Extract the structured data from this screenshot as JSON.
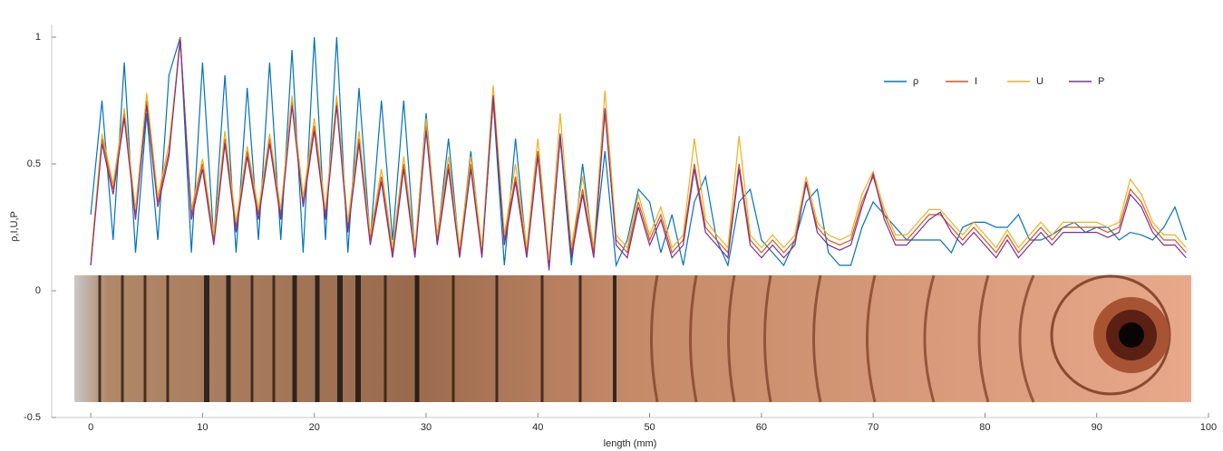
{
  "chart_data": {
    "type": "line",
    "x_label": "length (mm)",
    "y_label": "ρ,I,U,P",
    "xlim": [
      -3.5,
      100
    ],
    "ylim": [
      -0.5,
      1.05
    ],
    "xticks": [
      0,
      10,
      20,
      30,
      40,
      50,
      60,
      70,
      80,
      90,
      100
    ],
    "yticks": [
      -0.5,
      0,
      0.5,
      1
    ],
    "legend_loc": "upper right",
    "x": [
      0,
      1,
      2,
      3,
      4,
      5,
      6,
      7,
      8,
      9,
      10,
      11,
      12,
      13,
      14,
      15,
      16,
      17,
      18,
      19,
      20,
      21,
      22,
      23,
      24,
      25,
      26,
      27,
      28,
      29,
      30,
      31,
      32,
      33,
      34,
      35,
      36,
      37,
      38,
      39,
      40,
      41,
      42,
      43,
      44,
      45,
      46,
      47,
      48,
      49,
      50,
      51,
      52,
      53,
      54,
      55,
      56,
      57,
      58,
      59,
      60,
      61,
      62,
      63,
      64,
      65,
      66,
      67,
      68,
      69,
      70,
      71,
      72,
      73,
      74,
      75,
      76,
      77,
      78,
      79,
      80,
      81,
      82,
      83,
      84,
      85,
      86,
      87,
      88,
      89,
      90,
      91,
      92,
      93,
      94,
      95,
      96,
      97,
      98
    ],
    "series": [
      {
        "name": "ρ",
        "color": "#0072bd",
        "values": [
          0.3,
          0.75,
          0.2,
          0.9,
          0.15,
          0.7,
          0.2,
          0.85,
          1.0,
          0.15,
          0.9,
          0.2,
          0.85,
          0.15,
          0.8,
          0.2,
          0.9,
          0.2,
          0.95,
          0.15,
          1.0,
          0.2,
          1.0,
          0.15,
          0.8,
          0.2,
          0.75,
          0.2,
          0.75,
          0.15,
          0.7,
          0.2,
          0.6,
          0.15,
          0.55,
          0.15,
          0.75,
          0.1,
          0.6,
          0.15,
          0.55,
          0.1,
          0.6,
          0.1,
          0.5,
          0.15,
          0.55,
          0.1,
          0.2,
          0.4,
          0.35,
          0.15,
          0.3,
          0.1,
          0.35,
          0.45,
          0.2,
          0.1,
          0.35,
          0.4,
          0.2,
          0.15,
          0.1,
          0.2,
          0.35,
          0.4,
          0.15,
          0.1,
          0.1,
          0.25,
          0.35,
          0.3,
          0.25,
          0.2,
          0.2,
          0.2,
          0.2,
          0.15,
          0.25,
          0.27,
          0.27,
          0.25,
          0.25,
          0.3,
          0.2,
          0.2,
          0.22,
          0.25,
          0.27,
          0.23,
          0.25,
          0.25,
          0.2,
          0.23,
          0.22,
          0.2,
          0.25,
          0.33,
          0.2
        ]
      },
      {
        "name": "I",
        "color": "#d95319",
        "values": [
          0.1,
          0.6,
          0.4,
          0.7,
          0.3,
          0.75,
          0.35,
          0.55,
          1.0,
          0.3,
          0.5,
          0.2,
          0.6,
          0.25,
          0.55,
          0.3,
          0.6,
          0.3,
          0.75,
          0.35,
          0.65,
          0.3,
          0.75,
          0.25,
          0.6,
          0.2,
          0.45,
          0.15,
          0.5,
          0.15,
          0.65,
          0.2,
          0.5,
          0.15,
          0.5,
          0.15,
          0.75,
          0.2,
          0.45,
          0.15,
          0.55,
          0.1,
          0.6,
          0.15,
          0.4,
          0.15,
          0.7,
          0.2,
          0.15,
          0.35,
          0.2,
          0.3,
          0.15,
          0.2,
          0.5,
          0.25,
          0.2,
          0.15,
          0.5,
          0.2,
          0.15,
          0.2,
          0.15,
          0.2,
          0.42,
          0.25,
          0.2,
          0.18,
          0.2,
          0.35,
          0.45,
          0.3,
          0.2,
          0.2,
          0.25,
          0.3,
          0.3,
          0.25,
          0.2,
          0.25,
          0.2,
          0.15,
          0.22,
          0.15,
          0.2,
          0.25,
          0.2,
          0.25,
          0.25,
          0.25,
          0.25,
          0.23,
          0.25,
          0.4,
          0.35,
          0.25,
          0.2,
          0.2,
          0.15
        ]
      },
      {
        "name": "U",
        "color": "#edb120",
        "values": [
          0.12,
          0.62,
          0.42,
          0.72,
          0.32,
          0.78,
          0.37,
          0.58,
          0.98,
          0.32,
          0.52,
          0.22,
          0.63,
          0.27,
          0.57,
          0.32,
          0.62,
          0.32,
          0.77,
          0.37,
          0.68,
          0.32,
          0.77,
          0.27,
          0.63,
          0.22,
          0.48,
          0.17,
          0.53,
          0.17,
          0.68,
          0.22,
          0.53,
          0.17,
          0.53,
          0.17,
          0.81,
          0.22,
          0.5,
          0.17,
          0.6,
          0.12,
          0.7,
          0.17,
          0.45,
          0.17,
          0.79,
          0.22,
          0.17,
          0.38,
          0.22,
          0.33,
          0.17,
          0.22,
          0.6,
          0.28,
          0.22,
          0.17,
          0.61,
          0.22,
          0.17,
          0.22,
          0.17,
          0.22,
          0.45,
          0.27,
          0.22,
          0.2,
          0.22,
          0.38,
          0.47,
          0.32,
          0.22,
          0.22,
          0.27,
          0.32,
          0.32,
          0.27,
          0.22,
          0.27,
          0.22,
          0.17,
          0.24,
          0.17,
          0.22,
          0.27,
          0.22,
          0.27,
          0.27,
          0.27,
          0.27,
          0.25,
          0.27,
          0.44,
          0.38,
          0.27,
          0.22,
          0.22,
          0.17
        ]
      },
      {
        "name": "P",
        "color": "#7e2f8e",
        "values": [
          0.1,
          0.58,
          0.38,
          0.68,
          0.28,
          0.73,
          0.33,
          0.53,
          0.99,
          0.28,
          0.48,
          0.18,
          0.58,
          0.23,
          0.53,
          0.28,
          0.58,
          0.28,
          0.73,
          0.33,
          0.63,
          0.28,
          0.73,
          0.23,
          0.58,
          0.18,
          0.43,
          0.13,
          0.48,
          0.13,
          0.63,
          0.18,
          0.48,
          0.13,
          0.48,
          0.13,
          0.77,
          0.18,
          0.43,
          0.13,
          0.53,
          0.08,
          0.62,
          0.13,
          0.38,
          0.13,
          0.72,
          0.18,
          0.13,
          0.33,
          0.18,
          0.28,
          0.13,
          0.18,
          0.48,
          0.23,
          0.18,
          0.13,
          0.48,
          0.18,
          0.13,
          0.18,
          0.13,
          0.18,
          0.43,
          0.23,
          0.18,
          0.16,
          0.18,
          0.33,
          0.46,
          0.28,
          0.18,
          0.18,
          0.23,
          0.28,
          0.31,
          0.23,
          0.18,
          0.23,
          0.18,
          0.13,
          0.2,
          0.13,
          0.18,
          0.23,
          0.18,
          0.23,
          0.23,
          0.23,
          0.23,
          0.21,
          0.23,
          0.38,
          0.33,
          0.23,
          0.18,
          0.18,
          0.13
        ]
      }
    ]
  }
}
